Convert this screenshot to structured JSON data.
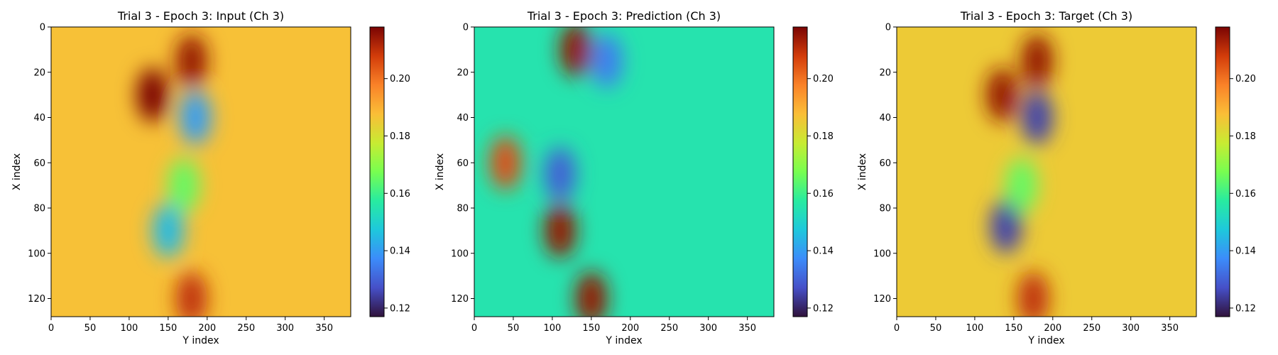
{
  "chart_data": [
    {
      "type": "heatmap",
      "title": "Trial 3 - Epoch 3: Input (Ch 3)",
      "xlabel": "Y index",
      "ylabel": "X index",
      "xlim": [
        0,
        384
      ],
      "ylim": [
        128,
        0
      ],
      "xticks": [
        0,
        50,
        100,
        150,
        200,
        250,
        300,
        350
      ],
      "yticks": [
        0,
        20,
        40,
        60,
        80,
        100,
        120
      ],
      "colorbar": {
        "range": [
          0.117,
          0.218
        ],
        "ticks": [
          "0.12",
          "0.14",
          "0.16",
          "0.18",
          "0.20"
        ],
        "colormap": "turbo"
      },
      "background_value": 0.187,
      "features": [
        {
          "y": 180,
          "x": 15,
          "value": 0.215
        },
        {
          "y": 130,
          "x": 30,
          "value": 0.218
        },
        {
          "y": 185,
          "x": 40,
          "value": 0.14
        },
        {
          "y": 150,
          "x": 90,
          "value": 0.145
        },
        {
          "y": 170,
          "x": 70,
          "value": 0.165
        },
        {
          "y": 180,
          "x": 120,
          "value": 0.21
        }
      ]
    },
    {
      "type": "heatmap",
      "title": "Trial 3 - Epoch 3: Prediction (Ch 3)",
      "xlabel": "Y index",
      "ylabel": "X index",
      "xlim": [
        0,
        384
      ],
      "ylim": [
        128,
        0
      ],
      "xticks": [
        0,
        50,
        100,
        150,
        200,
        250,
        300,
        350
      ],
      "yticks": [
        0,
        20,
        40,
        60,
        80,
        100,
        120
      ],
      "colorbar": {
        "range": [
          0.117,
          0.218
        ],
        "ticks": [
          "0.12",
          "0.14",
          "0.16",
          "0.18",
          "0.20"
        ],
        "colormap": "turbo"
      },
      "background_value": 0.155,
      "features": [
        {
          "y": 40,
          "x": 60,
          "value": 0.205
        },
        {
          "y": 130,
          "x": 10,
          "value": 0.215
        },
        {
          "y": 170,
          "x": 15,
          "value": 0.135
        },
        {
          "y": 110,
          "x": 65,
          "value": 0.13
        },
        {
          "y": 110,
          "x": 90,
          "value": 0.215
        },
        {
          "y": 150,
          "x": 120,
          "value": 0.215
        }
      ]
    },
    {
      "type": "heatmap",
      "title": "Trial 3 - Epoch 3: Target (Ch 3)",
      "xlabel": "Y index",
      "ylabel": "X index",
      "xlim": [
        0,
        384
      ],
      "ylim": [
        128,
        0
      ],
      "xticks": [
        0,
        50,
        100,
        150,
        200,
        250,
        300,
        350
      ],
      "yticks": [
        0,
        20,
        40,
        60,
        80,
        100,
        120
      ],
      "colorbar": {
        "range": [
          0.117,
          0.218
        ],
        "ticks": [
          "0.12",
          "0.14",
          "0.16",
          "0.18",
          "0.20"
        ],
        "colormap": "turbo"
      },
      "background_value": 0.185,
      "features": [
        {
          "y": 180,
          "x": 15,
          "value": 0.215
        },
        {
          "y": 135,
          "x": 30,
          "value": 0.215
        },
        {
          "y": 180,
          "x": 40,
          "value": 0.125
        },
        {
          "y": 140,
          "x": 88,
          "value": 0.125
        },
        {
          "y": 160,
          "x": 70,
          "value": 0.165
        },
        {
          "y": 175,
          "x": 120,
          "value": 0.21
        }
      ]
    }
  ]
}
